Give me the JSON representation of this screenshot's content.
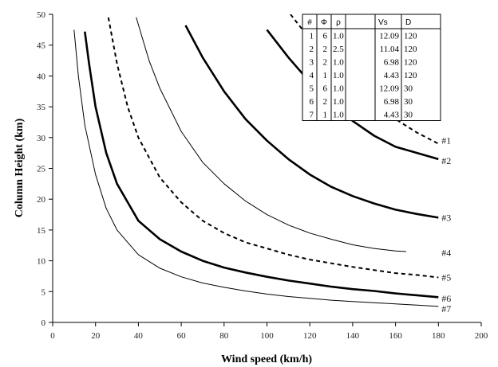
{
  "chart_data": {
    "type": "line",
    "title": "",
    "xlabel": "Wind speed (km/h)",
    "ylabel": "Column Height (km)",
    "xlim": [
      0,
      200
    ],
    "ylim": [
      0,
      50
    ],
    "x_ticks": [
      "0",
      "20",
      "40",
      "60",
      "80",
      "100",
      "120",
      "140",
      "160",
      "180",
      "200"
    ],
    "y_ticks": [
      "0",
      "5",
      "10",
      "15",
      "20",
      "25",
      "30",
      "35",
      "40",
      "45",
      "50"
    ],
    "grid": false,
    "series": [
      {
        "name": "#1",
        "style": "dashed",
        "width": 2,
        "x": [
          111,
          120,
          130,
          140,
          150,
          160,
          170,
          180
        ],
        "y": [
          50,
          46,
          42,
          38.5,
          35.5,
          33,
          30.8,
          29
        ]
      },
      {
        "name": "#2",
        "style": "solid",
        "width": 2.6,
        "x": [
          100,
          110,
          120,
          130,
          140,
          150,
          160,
          170,
          180
        ],
        "y": [
          47.5,
          43,
          39,
          35.5,
          32.7,
          30.3,
          28.5,
          27.5,
          26.5
        ]
      },
      {
        "name": "#3",
        "style": "solid",
        "width": 2.6,
        "x": [
          62,
          70,
          80,
          90,
          100,
          110,
          120,
          130,
          140,
          150,
          160,
          170,
          180
        ],
        "y": [
          48.2,
          43,
          37.5,
          33,
          29.5,
          26.5,
          24,
          22,
          20.5,
          19.3,
          18.3,
          17.6,
          17
        ]
      },
      {
        "name": "#4",
        "style": "solid",
        "width": 1,
        "x": [
          39,
          45,
          50,
          60,
          70,
          80,
          90,
          100,
          110,
          120,
          130,
          140,
          150,
          160,
          165
        ],
        "y": [
          49.5,
          42.5,
          38,
          31,
          26,
          22.5,
          19.7,
          17.5,
          15.8,
          14.5,
          13.5,
          12.6,
          12,
          11.6,
          11.5
        ]
      },
      {
        "name": "#5",
        "style": "dashed",
        "width": 2,
        "x": [
          26,
          30,
          35,
          40,
          50,
          60,
          70,
          80,
          90,
          100,
          110,
          120,
          130,
          140,
          150,
          160,
          170,
          180
        ],
        "y": [
          49.5,
          42,
          35,
          30,
          23.5,
          19.5,
          16.5,
          14.5,
          13,
          12,
          11,
          10.2,
          9.6,
          9,
          8.5,
          8,
          7.7,
          7.3
        ]
      },
      {
        "name": "#6",
        "style": "solid",
        "width": 2.6,
        "x": [
          15,
          17,
          20,
          25,
          30,
          40,
          50,
          60,
          70,
          80,
          90,
          100,
          110,
          120,
          130,
          140,
          150,
          160,
          170,
          180
        ],
        "y": [
          47.2,
          42,
          35,
          27.5,
          22.5,
          16.5,
          13.5,
          11.5,
          10,
          8.9,
          8.1,
          7.4,
          6.8,
          6.3,
          5.8,
          5.4,
          5.1,
          4.7,
          4.4,
          4.1
        ]
      },
      {
        "name": "#7",
        "style": "solid",
        "width": 1,
        "x": [
          10,
          12,
          15,
          20,
          25,
          30,
          40,
          50,
          60,
          70,
          80,
          90,
          100,
          110,
          120,
          130,
          140,
          150,
          160,
          170,
          180
        ],
        "y": [
          47.5,
          40,
          32,
          24,
          18.5,
          15,
          11,
          8.8,
          7.4,
          6.4,
          5.7,
          5.1,
          4.6,
          4.2,
          3.9,
          3.6,
          3.4,
          3.2,
          3,
          2.8,
          2.6
        ]
      }
    ],
    "legend_table": {
      "columns": [
        "#",
        "Φ",
        "ρ",
        "Vs",
        "D"
      ],
      "rows": [
        [
          "1",
          "6",
          "1.0",
          "12.09",
          "120"
        ],
        [
          "2",
          "2",
          "2.5",
          "11.04",
          "120"
        ],
        [
          "3",
          "2",
          "1.0",
          "6.98",
          "120"
        ],
        [
          "4",
          "1",
          "1.0",
          "4.43",
          "120"
        ],
        [
          "5",
          "6",
          "1.0",
          "12.09",
          "30"
        ],
        [
          "6",
          "2",
          "1.0",
          "6.98",
          "30"
        ],
        [
          "7",
          "1",
          "1.0",
          "4.43",
          "30"
        ]
      ]
    },
    "line_labels": [
      "#1",
      "#2",
      "#3",
      "#4",
      "#5",
      "#6",
      "#7"
    ]
  }
}
